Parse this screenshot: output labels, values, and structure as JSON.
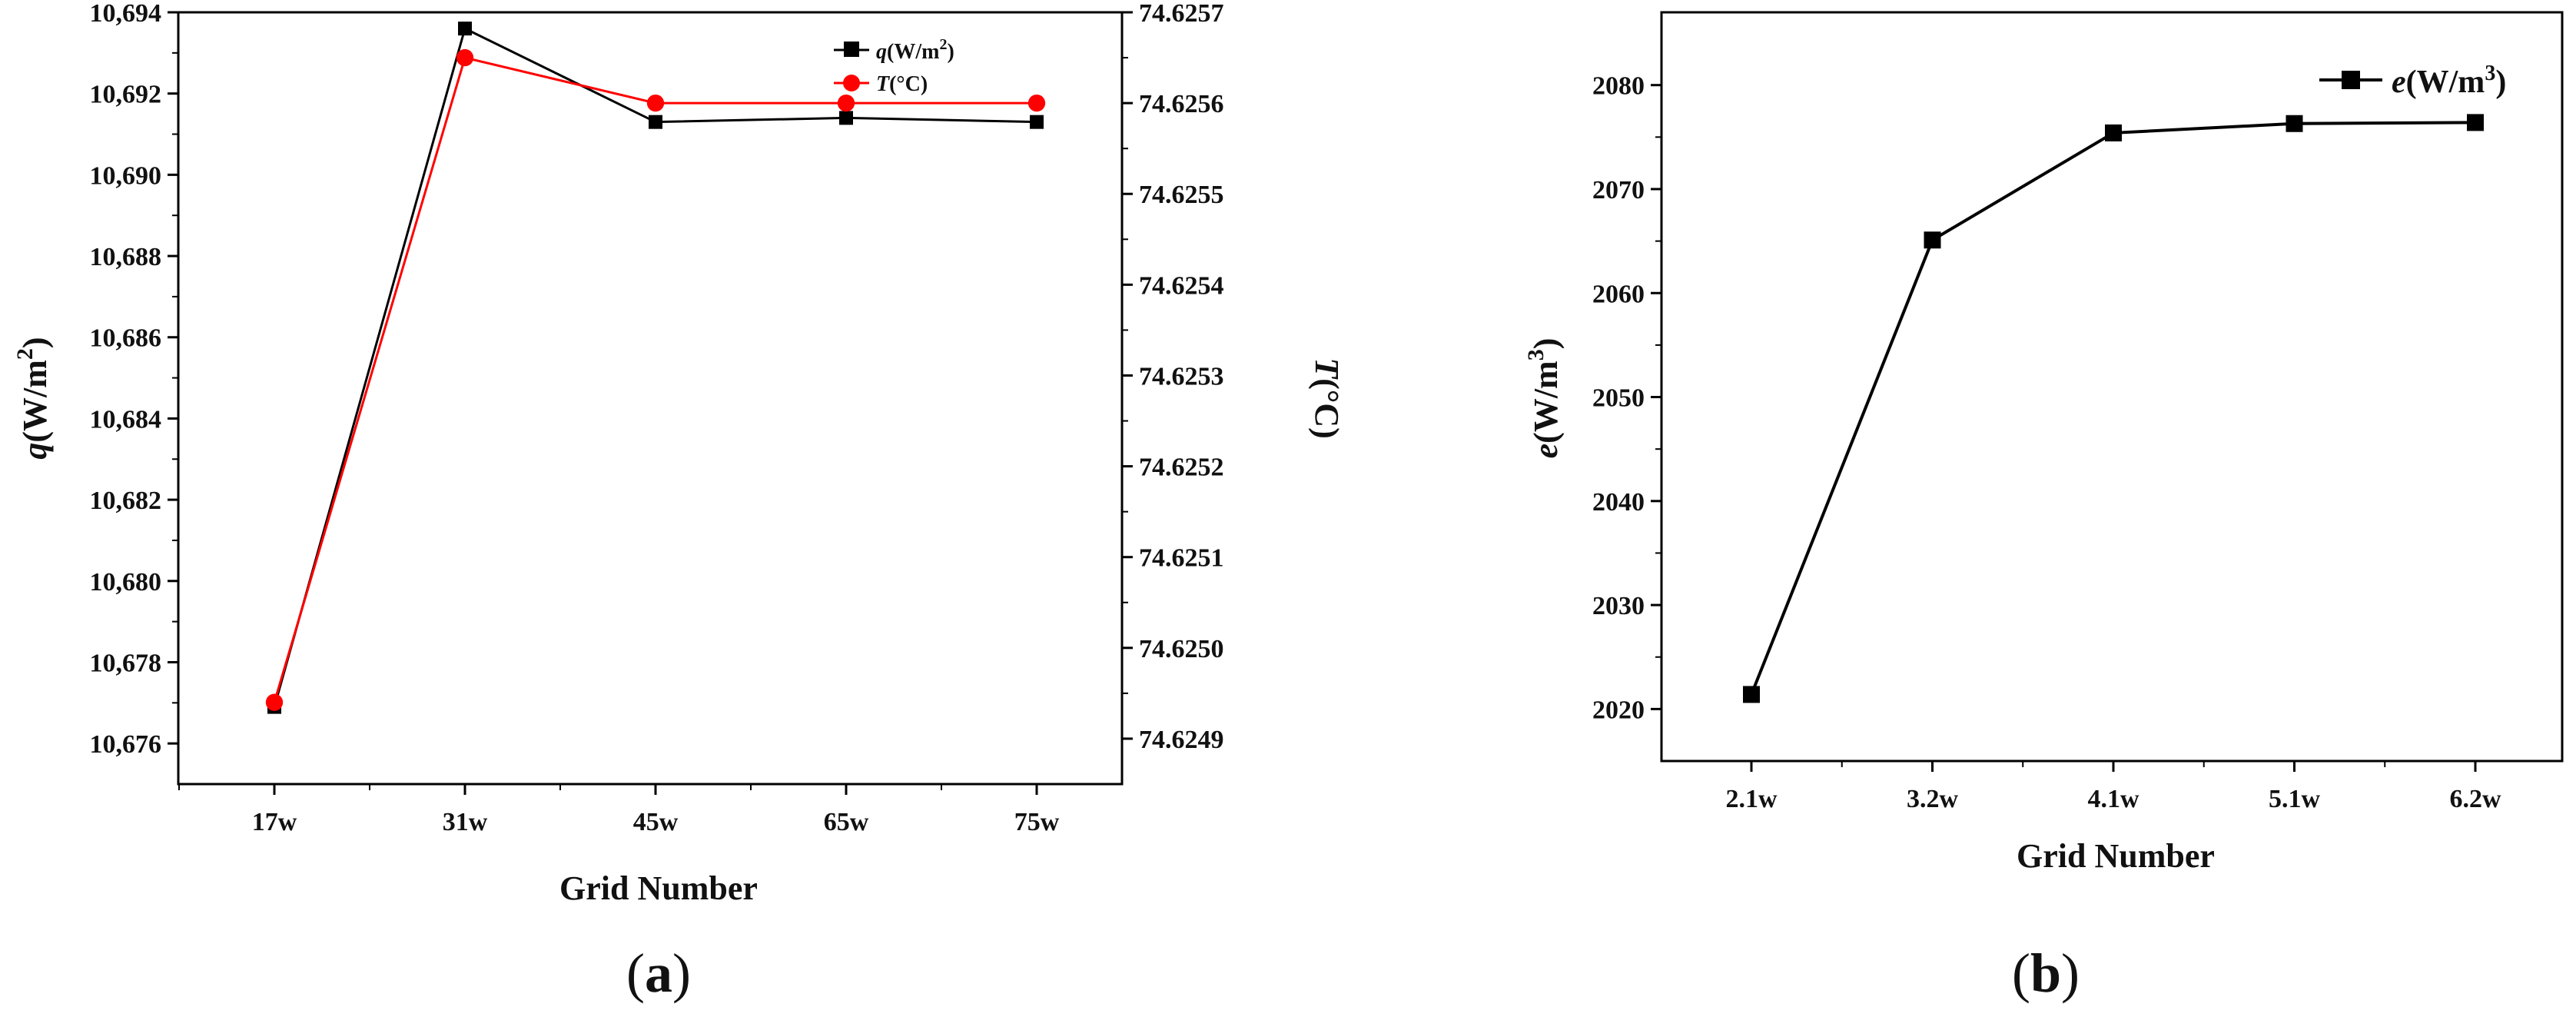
{
  "chart_data": [
    {
      "type": "line",
      "panel_label": "a",
      "xlabel": "Grid Number",
      "ylabel": "q(W/m2)",
      "y2label": "T(°C)",
      "categories": [
        "17w",
        "31w",
        "45w",
        "65w",
        "75w"
      ],
      "ylim": [
        10675,
        10694
      ],
      "y_ticks": [
        10676,
        10678,
        10680,
        10682,
        10684,
        10686,
        10688,
        10690,
        10692,
        10694
      ],
      "y_tick_labels": [
        "10,676",
        "10,678",
        "10,680",
        "10,682",
        "10,684",
        "10,686",
        "10,688",
        "10,690",
        "10,692",
        "10,694"
      ],
      "y2lim": [
        74.62485,
        74.6257
      ],
      "y2_ticks": [
        74.6249,
        74.625,
        74.6251,
        74.6252,
        74.6253,
        74.6254,
        74.6255,
        74.6256,
        74.6257
      ],
      "y2_tick_labels": [
        "74.6249",
        "74.6250",
        "74.6251",
        "74.6252",
        "74.6253",
        "74.6254",
        "74.6255",
        "74.6256",
        "74.6257"
      ],
      "legend": "top-right",
      "grid": false,
      "series": [
        {
          "name": "q(W/m2)",
          "axis": "left",
          "color": "#000000",
          "marker": "square",
          "values": [
            10676.9,
            10693.6,
            10691.3,
            10691.4,
            10691.3
          ]
        },
        {
          "name": "T(°C)",
          "axis": "right",
          "color": "#ff0000",
          "marker": "circle",
          "values": [
            74.62494,
            74.62565,
            74.6256,
            74.6256,
            74.6256
          ]
        }
      ]
    },
    {
      "type": "line",
      "panel_label": "b",
      "xlabel": "Grid Number",
      "ylabel": "e(W/m3)",
      "categories": [
        "2.1w",
        "3.2w",
        "4.1w",
        "5.1w",
        "6.2w"
      ],
      "ylim": [
        2015,
        2087
      ],
      "y_ticks": [
        2020,
        2030,
        2040,
        2050,
        2060,
        2070,
        2080
      ],
      "y_tick_labels": [
        "2020",
        "2030",
        "2040",
        "2050",
        "2060",
        "2070",
        "2080"
      ],
      "legend": "top-right",
      "grid": false,
      "series": [
        {
          "name": "e(W/m3)",
          "axis": "left",
          "color": "#000000",
          "marker": "square",
          "values": [
            2021.4,
            2065.1,
            2075.4,
            2076.3,
            2076.4
          ]
        }
      ]
    }
  ],
  "legend_a": {
    "q_symbol": "q",
    "q_unit": "(W/m",
    "q_sup": "2",
    "q_close": ")",
    "t_symbol": "T",
    "t_unit": "(°C)"
  },
  "axis_a": {
    "ylabel_symbol": "q",
    "ylabel_unit": "(W/m",
    "ylabel_sup": "2",
    "ylabel_close": ")",
    "y2label_symbol": "T",
    "y2label_unit": "(°C)",
    "xlabel": "Grid Number"
  },
  "legend_b": {
    "e_symbol": "e",
    "e_unit": "(W/m",
    "e_sup": "3",
    "e_close": ")"
  },
  "axis_b": {
    "ylabel_symbol": "e",
    "ylabel_unit": "(W/m",
    "ylabel_sup": "3",
    "ylabel_close": ")",
    "xlabel": "Grid Number"
  },
  "captions": {
    "a_open": "(",
    "a": "a",
    "a_close": ")",
    "b_open": "(",
    "b": "b",
    "b_close": ")"
  }
}
